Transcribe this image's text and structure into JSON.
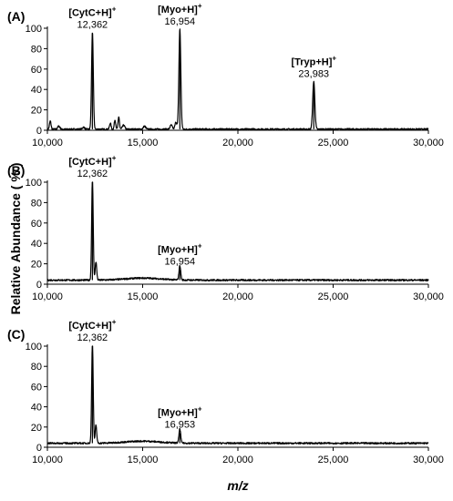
{
  "chart_data": {
    "type": "line",
    "xlabel": "m/z",
    "ylabel": "Relative Abundance ( % )",
    "xlim": [
      10000,
      30000
    ],
    "ylim": [
      0,
      100
    ],
    "x_ticks": [
      "10,000",
      "15,000",
      "20,000",
      "25,000",
      "30,000"
    ],
    "y_ticks": [
      "0",
      "20",
      "40",
      "60",
      "80",
      "100"
    ],
    "panels": [
      {
        "label": "(A)",
        "baseline": 1,
        "peaks": [
          {
            "name": "[CytC+H]",
            "sup": "+",
            "mz_label": "12,362",
            "x": 12362,
            "y": 95,
            "w": 45
          },
          {
            "name": "[Myo+H]",
            "sup": "+",
            "mz_label": "16,954",
            "x": 16954,
            "y": 98,
            "w": 50
          },
          {
            "name": "[Tryp+H]",
            "sup": "+",
            "mz_label": "23,983",
            "x": 23983,
            "y": 47,
            "w": 55
          }
        ],
        "minor_peaks": [
          {
            "x": 10150,
            "y": 8,
            "w": 40
          },
          {
            "x": 10600,
            "y": 3,
            "w": 60
          },
          {
            "x": 11900,
            "y": 2,
            "w": 60
          },
          {
            "x": 13300,
            "y": 6,
            "w": 40
          },
          {
            "x": 13550,
            "y": 9,
            "w": 40
          },
          {
            "x": 13750,
            "y": 12,
            "w": 35
          },
          {
            "x": 14000,
            "y": 4,
            "w": 60
          },
          {
            "x": 15100,
            "y": 3,
            "w": 60
          },
          {
            "x": 16500,
            "y": 4,
            "w": 60
          },
          {
            "x": 16750,
            "y": 7,
            "w": 50
          }
        ]
      },
      {
        "label": "(B)",
        "baseline": 4,
        "peaks": [
          {
            "name": "[CytC+H]",
            "sup": "+",
            "mz_label": "12,362",
            "x": 12362,
            "y": 100,
            "w": 40
          },
          {
            "name": "[Myo+H]",
            "sup": "+",
            "mz_label": "16,954",
            "x": 16954,
            "y": 14,
            "w": 45
          }
        ],
        "minor_peaks": [
          {
            "x": 12550,
            "y": 18,
            "w": 40
          },
          {
            "x": 15000,
            "y": 2,
            "w": 900
          }
        ]
      },
      {
        "label": "(C)",
        "baseline": 4,
        "peaks": [
          {
            "name": "[CytC+H]",
            "sup": "+",
            "mz_label": "12,362",
            "x": 12362,
            "y": 100,
            "w": 40
          },
          {
            "name": "[Myo+H]",
            "sup": "+",
            "mz_label": "16,953",
            "x": 16953,
            "y": 14,
            "w": 45
          }
        ],
        "minor_peaks": [
          {
            "x": 12550,
            "y": 18,
            "w": 40
          },
          {
            "x": 15000,
            "y": 2,
            "w": 900
          }
        ]
      }
    ]
  }
}
